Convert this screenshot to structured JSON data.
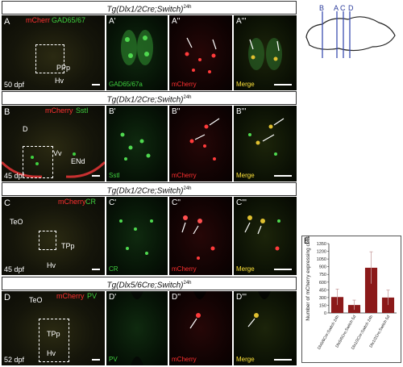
{
  "headers": {
    "row1": {
      "text": "Tg(Dlx1/2Cre;Switch)",
      "sup": "24h"
    },
    "row2": {
      "text": "Tg(Dlx1/2Cre;Switch)",
      "sup": "24h"
    },
    "row3": {
      "text": "Tg(Dlx1/2Cre;Switch)",
      "sup": "24h"
    },
    "row4": {
      "text": "Tg(Dlx5/6Cre;Switch)",
      "sup": "24h"
    }
  },
  "rows": [
    {
      "letter": "A",
      "age": "50 dpf",
      "main_label_red": "mCherr",
      "main_label_green": "GAD65/67",
      "regions": [
        "PPp",
        "Hv"
      ],
      "sub": [
        {
          "letter": "A'",
          "label": "GAD65/67a"
        },
        {
          "letter": "A''",
          "label": "mCherry"
        },
        {
          "letter": "A'''",
          "label": "Merge"
        }
      ]
    },
    {
      "letter": "B",
      "age": "45 dpf",
      "main_label_red": "mCherry",
      "main_label_green": "SstI",
      "regions": [
        "D",
        "Vv",
        "ENd"
      ],
      "sub": [
        {
          "letter": "B'",
          "label": "SstI"
        },
        {
          "letter": "B''",
          "label": "mCherry"
        },
        {
          "letter": "B'''",
          "label": "Merge"
        }
      ]
    },
    {
      "letter": "C",
      "age": "45 dpf",
      "main_label_red": "mCherry",
      "main_label_green": "CR",
      "regions": [
        "TeO",
        "TPp",
        "Hv"
      ],
      "sub": [
        {
          "letter": "C'",
          "label": "CR"
        },
        {
          "letter": "C''",
          "label": "mCherry"
        },
        {
          "letter": "C'''",
          "label": "Merge"
        }
      ]
    },
    {
      "letter": "D",
      "age": "52 dpf",
      "main_label_red": "mCherry",
      "main_label_green": "PV",
      "regions": [
        "TeO",
        "TPp",
        "Hv"
      ],
      "sub": [
        {
          "letter": "D'",
          "label": "PV"
        },
        {
          "letter": "D''",
          "label": "mCherry"
        },
        {
          "letter": "D'''",
          "label": "Merge"
        }
      ]
    }
  ],
  "brain_schematic": {
    "labels": [
      "B",
      "A",
      "C",
      "D"
    ]
  },
  "chart_data": {
    "type": "bar",
    "panel_letter": "E",
    "ylabel": "Number of mCherry expressing cells",
    "ylim": [
      0,
      1350
    ],
    "yticks": [
      0,
      150,
      300,
      450,
      600,
      750,
      900,
      1050,
      1200,
      1350
    ],
    "categories": [
      "Dlx5/6Cre;Switch 24h",
      "Dlx5/6Cre;Switch 5d",
      "Dlx1/2Cre;Switch 24h",
      "Dlx1/2Cre;Switch 5d"
    ],
    "values": [
      310,
      155,
      880,
      300
    ],
    "errors": [
      155,
      95,
      310,
      145
    ],
    "bar_color": "#8b1a1a"
  }
}
